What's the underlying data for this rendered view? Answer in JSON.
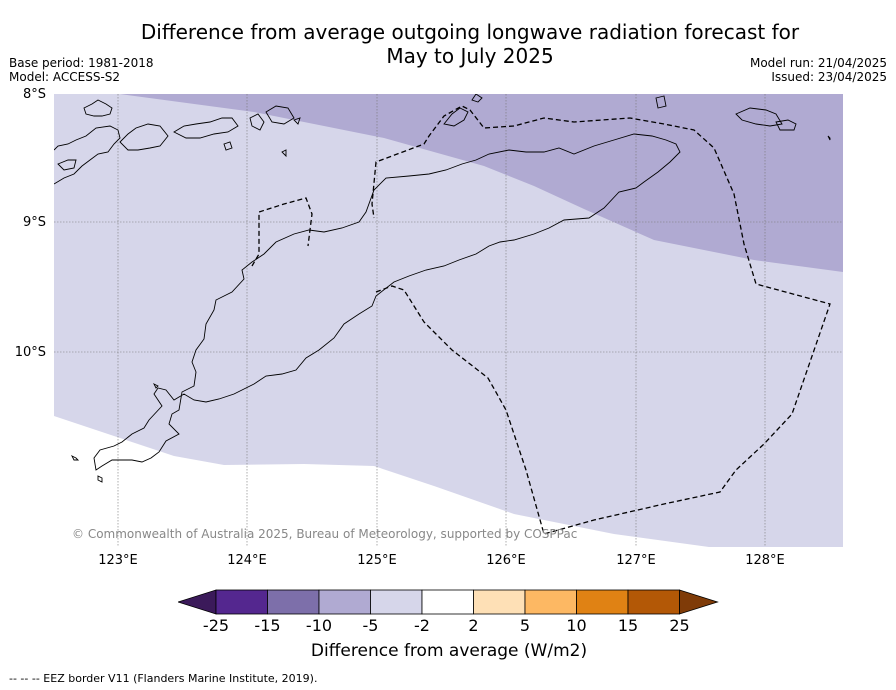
{
  "title_line1": "Difference from average outgoing longwave radiation forecast for",
  "title_line2": "May to July 2025",
  "base_period": "Base period: 1981-2018",
  "model": "Model: ACCESS-S2",
  "model_run": "Model run: 21/04/2025",
  "issued": "Issued: 23/04/2025",
  "latitudes": [
    "8°S",
    "9°S",
    "10°S"
  ],
  "longitudes": [
    "123°E",
    "124°E",
    "125°E",
    "126°E",
    "127°E",
    "128°E"
  ],
  "copyright": "© Commonwealth of Australia 2025, Bureau of Meteorology, supported by COSPPac",
  "colorbar": {
    "ticks": [
      "-25",
      "-15",
      "-10",
      "-5",
      "-2",
      "2",
      "5",
      "10",
      "15",
      "25"
    ],
    "colors": [
      "#3b1a5a",
      "#54278f",
      "#7d6faa",
      "#b0aad2",
      "#d6d6ea",
      "#ffffff",
      "#fee0b6",
      "#fdb863",
      "#e08214",
      "#b35806",
      "#7f3b08"
    ],
    "label": "Difference from average (W/m2)"
  },
  "map_colors": {
    "band_minus5_to_minus2": "#d6d6ea",
    "band_minus10_to_minus5": "#b0aad2",
    "land_outline": "#000000"
  },
  "footer": "--  --  -- EEZ border V11 (Flanders Marine Institute, 2019)."
}
